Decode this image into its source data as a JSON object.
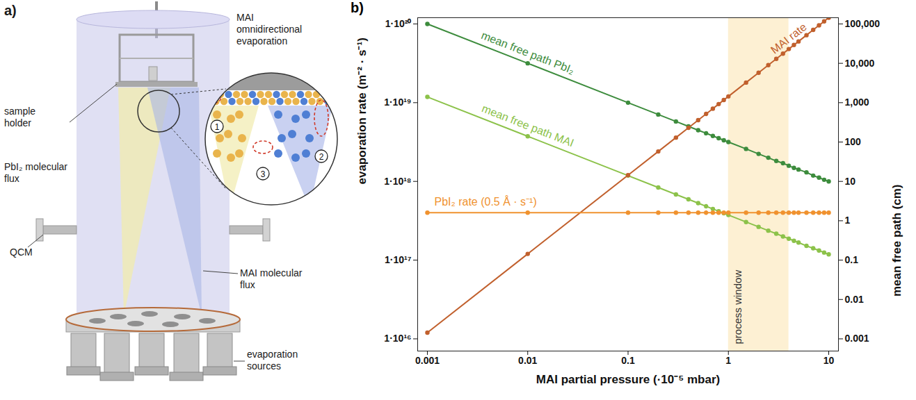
{
  "diagram": {
    "panel_label": "a)",
    "labels": {
      "top_right": "MAI omnidirectional evaporation",
      "holder": "sample holder",
      "pbi2_flux": "PbI₂ molecular flux",
      "qcm": "QCM",
      "mai_flux": "MAI molecular flux",
      "sources": "evaporation sources"
    },
    "callouts": [
      "1",
      "2",
      "3"
    ]
  },
  "chart_data": {
    "type": "line",
    "panel_label": "b)",
    "xlabel": "MAI partial pressure (·10⁻⁵ mbar)",
    "ylabel": "evaporation rate (m⁻² · s⁻¹)",
    "y2label": "mean free path (cm)",
    "log": true,
    "grid": false,
    "x": [
      0.001,
      0.01,
      0.1,
      0.2,
      0.3,
      0.4,
      0.5,
      0.6,
      0.7,
      0.8,
      0.9,
      1,
      1.5,
      2,
      2.5,
      3,
      3.5,
      4,
      4.5,
      5,
      6,
      7,
      8,
      9,
      10
    ],
    "xlim": [
      0.0008,
      12.5
    ],
    "xticks": [
      0.001,
      0.01,
      0.1,
      1,
      10
    ],
    "ylim": [
      7000000000000000.0,
      1.2e+20
    ],
    "yticks": [
      {
        "value": 1e+16,
        "label": "1·10¹⁶"
      },
      {
        "value": 1e+17,
        "label": "1·10¹⁷"
      },
      {
        "value": 1e+18,
        "label": "1·10¹⁸"
      },
      {
        "value": 1e+19,
        "label": "1·10¹⁹"
      },
      {
        "value": 1e+20,
        "label": "1·10²⁰"
      }
    ],
    "y2lim": [
      0.00049,
      144000
    ],
    "y2ticks": [
      {
        "value": 100000,
        "label": "100,000"
      },
      {
        "value": 10000,
        "label": "10,000"
      },
      {
        "value": 1000,
        "label": "1,000"
      },
      100,
      10,
      1,
      0.1,
      0.01,
      0.001
    ],
    "series": [
      {
        "name": "mean free path PbI₂",
        "color": "#3d8c3d",
        "axis": "y2",
        "marker": "circle",
        "values": [
          100000,
          10000,
          1000,
          500,
          333,
          250,
          200,
          167,
          143,
          125,
          111,
          100,
          67,
          50,
          40,
          33,
          29,
          25,
          22,
          20,
          17,
          14,
          12.5,
          11,
          10
        ]
      },
      {
        "name": "mean free path MAI",
        "color": "#8cc24a",
        "axis": "y2",
        "marker": "circle",
        "values": [
          1400,
          140,
          14,
          7,
          4.67,
          3.5,
          2.8,
          2.33,
          2,
          1.75,
          1.56,
          1.4,
          0.93,
          0.7,
          0.56,
          0.47,
          0.4,
          0.35,
          0.31,
          0.28,
          0.23,
          0.2,
          0.175,
          0.156,
          0.14
        ]
      },
      {
        "name": "MAI rate",
        "color": "#c1602d",
        "marker": "circle",
        "values": [
          1.2e+16,
          1.2e+17,
          1.2e+18,
          2.4e+18,
          3.6e+18,
          4.8e+18,
          6e+18,
          7.2e+18,
          8.4e+18,
          9.6e+18,
          1.08e+19,
          1.2e+19,
          1.8e+19,
          2.4e+19,
          3e+19,
          3.6e+19,
          4.2e+19,
          4.8e+19,
          5.4e+19,
          6e+19,
          7.2e+19,
          8.4e+19,
          9.6e+19,
          1.08e+20,
          1.2e+20
        ]
      },
      {
        "name": "PbI₂ rate (0.5 Å · s⁻¹)",
        "color": "#f0922f",
        "marker": "circle",
        "values": [
          4e+17,
          4e+17,
          4e+17,
          4e+17,
          4e+17,
          4e+17,
          4e+17,
          4e+17,
          4e+17,
          4e+17,
          4e+17,
          4e+17,
          4e+17,
          4e+17,
          4e+17,
          4e+17,
          4e+17,
          4e+17,
          4e+17,
          4e+17,
          4e+17,
          4e+17,
          4e+17,
          4e+17,
          4e+17
        ]
      }
    ],
    "annotations": [
      {
        "text": "process window",
        "x1": 1,
        "x2": 4,
        "color": "#fdf0d3"
      }
    ]
  }
}
